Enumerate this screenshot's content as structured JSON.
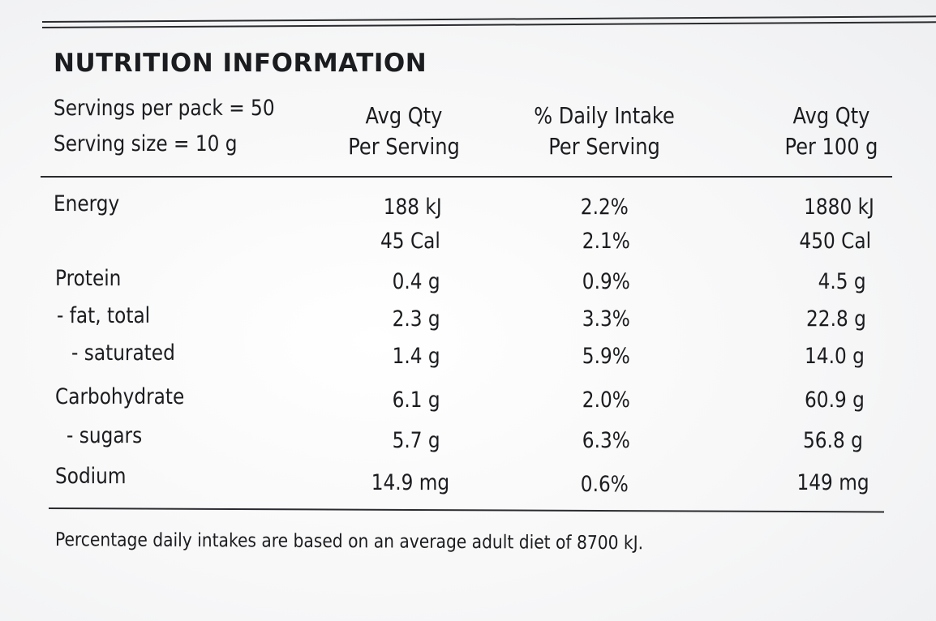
{
  "title": "NUTRITION INFORMATION",
  "servings": {
    "per_pack": "Servings per pack = 50",
    "size": "Serving size = 10 g"
  },
  "columns": [
    {
      "line1": "Avg Qty",
      "line2": "Per Serving"
    },
    {
      "line1": "% Daily Intake",
      "line2": "Per Serving"
    },
    {
      "line1": "Avg Qty",
      "line2": "Per 100 g"
    }
  ],
  "rows": [
    {
      "label": "Energy",
      "per_serving": "188 kJ",
      "daily": "2.2%",
      "per_100g": "1880 kJ"
    },
    {
      "label": "",
      "per_serving": "45 Cal",
      "daily": "2.1%",
      "per_100g": "450 Cal"
    },
    {
      "label": "Protein",
      "per_serving": "0.4 g",
      "daily": "0.9%",
      "per_100g": "4.5 g"
    },
    {
      "label": "- fat, total",
      "per_serving": "2.3 g",
      "daily": "3.3%",
      "per_100g": "22.8 g"
    },
    {
      "label": "- saturated",
      "per_serving": "1.4 g",
      "daily": "5.9%",
      "per_100g": "14.0 g"
    },
    {
      "label": "Carbohydrate",
      "per_serving": "6.1 g",
      "daily": "2.0%",
      "per_100g": "60.9 g"
    },
    {
      "label": "- sugars",
      "per_serving": "5.7 g",
      "daily": "6.3%",
      "per_100g": "56.8 g"
    },
    {
      "label": "Sodium",
      "per_serving": "14.9 mg",
      "daily": "0.6%",
      "per_100g": "149 mg"
    }
  ],
  "footnote": "Percentage daily intakes are based on an average adult diet of 8700 kJ."
}
